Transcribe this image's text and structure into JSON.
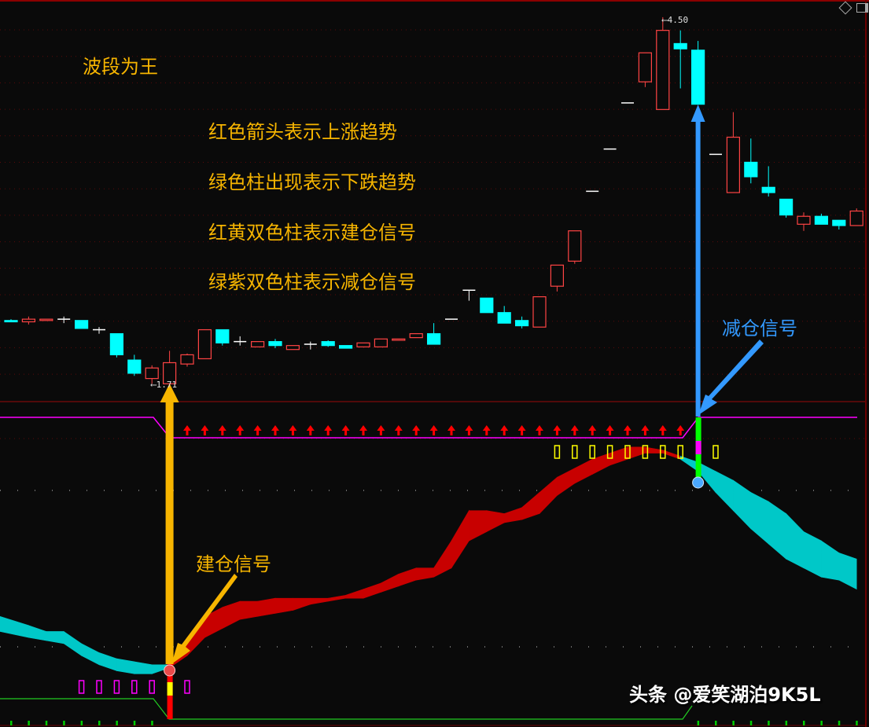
{
  "texts": {
    "title": "波段为王",
    "line1": "红色箭头表示上涨趋势",
    "line2": "绿色柱出现表示下跌趋势",
    "line3": "红黄双色柱表示建仓信号",
    "line4": "绿紫双色柱表示减仓信号",
    "reduce_signal": "减仓信号",
    "build_signal": "建仓信号",
    "watermark": "头条 @爱笑湖泊9K5L"
  },
  "colors": {
    "up": "#ff4444",
    "down": "#00ffff",
    "cross": "#ffffff",
    "ribbon_up": "#c80000",
    "ribbon_down": "#00c8c8",
    "annotation_orange": "#f7b500",
    "annotation_blue": "#3399ff",
    "signal_line": "#ff00ff",
    "bottom_line": "#22cc22"
  },
  "icons": [
    "diamond-icon",
    "panel-toggle-icon"
  ],
  "chart_data": [
    {
      "type": "candlestick",
      "high_label": "4.50",
      "low_label": "1.71",
      "grid": "dotted",
      "ohlc": [
        [
          2.2,
          2.21,
          2.19,
          2.19
        ],
        [
          2.19,
          2.23,
          2.17,
          2.21
        ],
        [
          2.2,
          2.21,
          2.2,
          2.21
        ],
        [
          2.21,
          2.23,
          2.18,
          2.21
        ],
        [
          2.2,
          2.2,
          2.14,
          2.14
        ],
        [
          2.13,
          2.15,
          2.1,
          2.13
        ],
        [
          2.1,
          2.1,
          1.92,
          1.94
        ],
        [
          1.9,
          1.94,
          1.78,
          1.8
        ],
        [
          1.76,
          1.86,
          1.72,
          1.84
        ],
        [
          1.72,
          1.97,
          1.71,
          1.88
        ],
        [
          1.87,
          1.95,
          1.85,
          1.94
        ],
        [
          1.91,
          2.13,
          1.91,
          2.13
        ],
        [
          2.13,
          2.13,
          2.01,
          2.03
        ],
        [
          2.04,
          2.08,
          2.01,
          2.04
        ],
        [
          2.0,
          2.04,
          2.0,
          2.04
        ],
        [
          2.04,
          2.06,
          1.99,
          2.01
        ],
        [
          1.98,
          2.01,
          1.98,
          2.01
        ],
        [
          2.02,
          2.04,
          1.98,
          2.02
        ],
        [
          2.04,
          2.05,
          2.0,
          2.01
        ],
        [
          2.01,
          2.01,
          1.99,
          1.99
        ],
        [
          2.0,
          2.03,
          2.0,
          2.03
        ],
        [
          2.0,
          2.06,
          2.0,
          2.06
        ],
        [
          2.05,
          2.06,
          2.05,
          2.06
        ],
        [
          2.07,
          2.1,
          2.07,
          2.1
        ],
        [
          2.1,
          2.18,
          2.02,
          2.02
        ],
        [
          2.21,
          2.21,
          2.21,
          2.21
        ],
        [
          2.43,
          2.43,
          2.35,
          2.43
        ],
        [
          2.37,
          2.37,
          2.26,
          2.26
        ],
        [
          2.26,
          2.31,
          2.18,
          2.18
        ],
        [
          2.2,
          2.23,
          2.14,
          2.16
        ],
        [
          2.15,
          2.38,
          2.15,
          2.38
        ],
        [
          2.46,
          2.62,
          2.42,
          2.62
        ],
        [
          2.65,
          2.88,
          2.63,
          2.88
        ],
        [
          3.18,
          3.18,
          3.18,
          3.18
        ],
        [
          3.5,
          3.5,
          3.5,
          3.5
        ],
        [
          3.85,
          3.85,
          3.85,
          3.85
        ],
        [
          4.01,
          4.23,
          3.97,
          4.23
        ],
        [
          3.8,
          4.5,
          3.8,
          4.4
        ],
        [
          4.3,
          4.4,
          3.96,
          4.26
        ],
        [
          4.25,
          4.32,
          3.84,
          3.84
        ],
        [
          3.46,
          3.46,
          3.46,
          3.46
        ],
        [
          3.17,
          3.78,
          3.17,
          3.59
        ],
        [
          3.4,
          3.58,
          3.24,
          3.29
        ],
        [
          3.21,
          3.37,
          3.14,
          3.17
        ],
        [
          3.12,
          3.12,
          2.98,
          3.0
        ],
        [
          2.93,
          3.02,
          2.88,
          2.99
        ],
        [
          2.99,
          3.01,
          2.93,
          2.93
        ],
        [
          2.96,
          2.96,
          2.89,
          2.92
        ],
        [
          2.92,
          3.05,
          2.92,
          3.03
        ]
      ]
    },
    {
      "type": "area",
      "ribbon_upper": [
        34,
        31,
        29,
        29,
        25,
        22,
        20,
        19,
        18,
        18,
        27,
        34,
        37,
        39,
        39,
        40,
        40,
        40,
        40,
        41,
        43,
        45,
        48,
        50,
        50,
        59,
        69,
        69,
        68,
        70,
        75,
        80,
        83,
        86,
        88,
        90,
        90,
        89,
        87,
        85,
        82,
        79,
        75,
        72,
        68,
        62,
        59,
        55,
        53
      ],
      "ribbon_lower": [
        29,
        27,
        26,
        25,
        21,
        18,
        16,
        15,
        15,
        17,
        21,
        27,
        30,
        33,
        34,
        35,
        36,
        38,
        39,
        40,
        40,
        42,
        44,
        46,
        47,
        50,
        59,
        62,
        65,
        66,
        68,
        74,
        78,
        81,
        84,
        86,
        88,
        88,
        86,
        82,
        75,
        69,
        63,
        58,
        53,
        50,
        47,
        46,
        43
      ],
      "ribbon_trend": [
        "down",
        "down",
        "down",
        "down",
        "down",
        "down",
        "down",
        "down",
        "down",
        "down",
        "up",
        "up",
        "up",
        "up",
        "up",
        "up",
        "up",
        "up",
        "up",
        "up",
        "up",
        "up",
        "up",
        "up",
        "up",
        "up",
        "up",
        "up",
        "up",
        "up",
        "up",
        "up",
        "up",
        "up",
        "up",
        "up",
        "up",
        "up",
        "up",
        "down",
        "down",
        "down",
        "down",
        "down",
        "down",
        "down",
        "down",
        "down",
        "down"
      ],
      "up_arrow_bars": [
        11,
        39
      ],
      "reduce_box_bars": [
        32,
        33,
        34,
        35,
        36,
        37,
        38,
        39,
        41
      ],
      "build_box_bars": [
        5,
        6,
        7,
        8,
        9,
        11
      ],
      "build_signal_bar": 10,
      "reduce_signal_bar": 40,
      "bottom_tick_bars": [
        1,
        2,
        3,
        4,
        5,
        6,
        7,
        8,
        9,
        40,
        41,
        42,
        43,
        44,
        45,
        46,
        47,
        48,
        49
      ]
    }
  ]
}
